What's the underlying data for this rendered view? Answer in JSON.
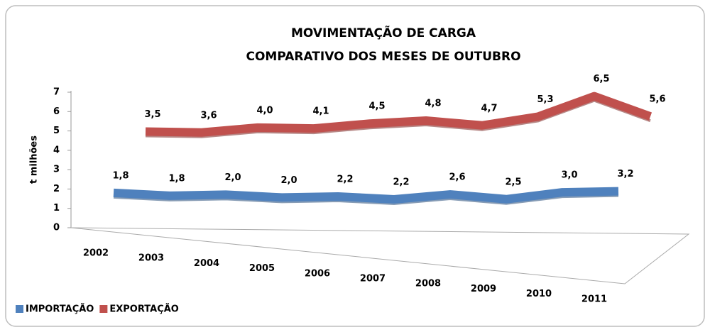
{
  "chart_data": {
    "type": "line",
    "title": "MOVIMENTAÇÃO DE CARGA",
    "subtitle": "COMPARATIVO DOS MESES DE OUTUBRO",
    "y_label": "t milhões",
    "categories": [
      "2002",
      "2003",
      "2004",
      "2005",
      "2006",
      "2007",
      "2008",
      "2009",
      "2010",
      "2011"
    ],
    "series": [
      {
        "name": "IMPORTAÇÃO",
        "color": "#4f81bd",
        "values": [
          1.8,
          1.8,
          2.0,
          2.0,
          2.2,
          2.2,
          2.6,
          2.5,
          3.0,
          3.2
        ],
        "value_labels": [
          "1,8",
          "1,8",
          "2,0",
          "2,0",
          "2,2",
          "2,2",
          "2,6",
          "2,5",
          "3,0",
          "3,2"
        ]
      },
      {
        "name": "EXPORTAÇÃO",
        "color": "#c0504d",
        "values": [
          3.5,
          3.6,
          4.0,
          4.1,
          4.5,
          4.8,
          4.7,
          5.3,
          6.5,
          5.6
        ],
        "value_labels": [
          "3,5",
          "3,6",
          "4,0",
          "4,1",
          "4,5",
          "4,8",
          "4,7",
          "5,3",
          "6,5",
          "5,6"
        ]
      }
    ],
    "ylim": [
      0,
      7
    ],
    "yticks": [
      0,
      1,
      2,
      3,
      4,
      5,
      6,
      7
    ],
    "legend": "bottom-left"
  }
}
